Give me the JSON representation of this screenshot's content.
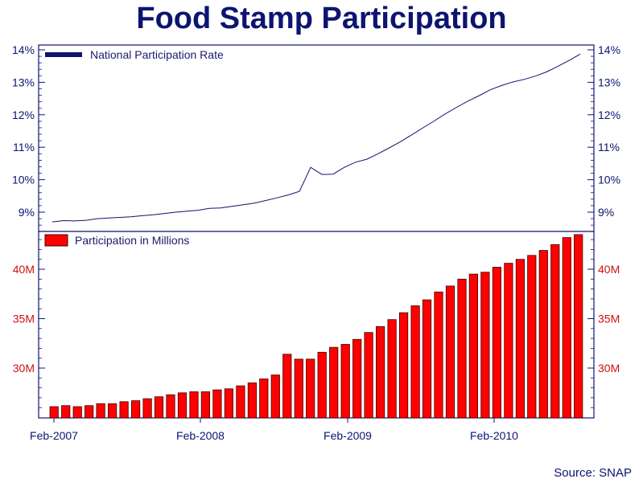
{
  "title": "Food Stamp Participation",
  "source": "Source: SNAP",
  "colors": {
    "navy": "#0d1470",
    "bar_fill": "#ff0000",
    "bar_stroke": "#400000",
    "tick_red": "#d01010"
  },
  "chart_data": [
    {
      "type": "line",
      "legend": "National Participation Rate",
      "legend_placement": "top-left",
      "yticks": [
        "9%",
        "10%",
        "11%",
        "12%",
        "13%",
        "14%"
      ],
      "ylim": [
        8.5,
        14.0
      ],
      "x_labels": [
        "Feb-2007",
        "Feb-2008",
        "Feb-2009",
        "Feb-2010"
      ],
      "series": [
        {
          "name": "National Participation Rate",
          "values": [
            8.7,
            8.74,
            8.73,
            8.75,
            8.8,
            8.82,
            8.84,
            8.86,
            8.89,
            8.92,
            8.96,
            9.0,
            9.03,
            9.06,
            9.12,
            9.13,
            9.18,
            9.23,
            9.28,
            9.36,
            9.44,
            9.53,
            9.64,
            10.38,
            10.16,
            10.17,
            10.38,
            10.54,
            10.63,
            10.8,
            10.98,
            11.17,
            11.38,
            11.6,
            11.81,
            12.03,
            12.23,
            12.42,
            12.59,
            12.77,
            12.9,
            13.01,
            13.09,
            13.19,
            13.32,
            13.49,
            13.67,
            13.87
          ]
        }
      ]
    },
    {
      "type": "bar",
      "legend": "Participation in Millions",
      "legend_placement": "top-left",
      "yticks": [
        "30M",
        "35M",
        "40M"
      ],
      "ylim": [
        25.1,
        43.6
      ],
      "x_labels": [
        "Feb-2007",
        "Feb-2008",
        "Feb-2009",
        "Feb-2010"
      ],
      "series": [
        {
          "name": "Participation in Millions",
          "values": [
            26.1,
            26.2,
            26.1,
            26.2,
            26.4,
            26.4,
            26.6,
            26.7,
            26.9,
            27.1,
            27.3,
            27.5,
            27.6,
            27.6,
            27.8,
            27.9,
            28.2,
            28.5,
            28.9,
            29.3,
            31.4,
            30.9,
            30.9,
            31.6,
            32.1,
            32.4,
            32.9,
            33.6,
            34.2,
            34.9,
            35.6,
            36.3,
            36.9,
            37.7,
            38.3,
            39.0,
            39.5,
            39.7,
            40.2,
            40.6,
            41.0,
            41.4,
            41.9,
            42.5,
            43.2,
            43.5
          ]
        }
      ]
    }
  ]
}
